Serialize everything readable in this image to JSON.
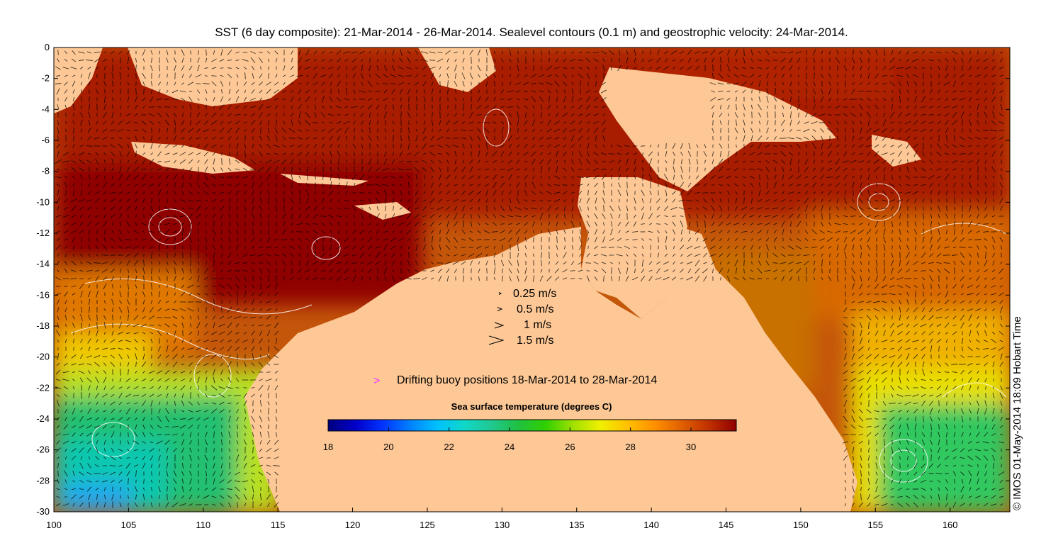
{
  "title": "SST (6 day composite): 21-Mar-2014 - 26-Mar-2014. Sealevel contours (0.1 m) and geostrophic velocity: 24-Mar-2014.",
  "credit": "© IMOS 01-May-2014 18:09 Hobart Time",
  "axes": {
    "x_ticks": [
      "100",
      "105",
      "110",
      "115",
      "120",
      "125",
      "130",
      "135",
      "140",
      "145",
      "150",
      "155",
      "160"
    ],
    "y_ticks": [
      "0",
      "-2",
      "-4",
      "-6",
      "-8",
      "-10",
      "-12",
      "-14",
      "-16",
      "-18",
      "-20",
      "-22",
      "-24",
      "-26",
      "-28",
      "-30"
    ],
    "lon_range": [
      100,
      164
    ],
    "lat_range": [
      -30,
      0
    ]
  },
  "velocity_legend": [
    {
      "label": "0.25 m/s",
      "speed": 0.25
    },
    {
      "label": "0.5 m/s",
      "speed": 0.5
    },
    {
      "label": "1 m/s",
      "speed": 1
    },
    {
      "label": "1.5 m/s",
      "speed": 1.5
    }
  ],
  "buoy_legend": {
    "label": "Drifting buoy positions 18-Mar-2014 to 28-Mar-2014",
    "marker": ">",
    "color": "#ff33ff"
  },
  "colorbar": {
    "title": "Sea surface temperature (degrees C)",
    "ticks": [
      "18",
      "20",
      "22",
      "24",
      "26",
      "28",
      "30"
    ],
    "range": [
      18,
      31.5
    ],
    "colors": [
      "#00007f",
      "#0000c8",
      "#0033ff",
      "#0080ff",
      "#00c0ff",
      "#10d8c8",
      "#20c890",
      "#20c040",
      "#30d000",
      "#a0e000",
      "#f0f000",
      "#ffc000",
      "#ff9000",
      "#e06000",
      "#c03000",
      "#900000"
    ]
  },
  "colors": {
    "land": "#fdc896",
    "sst_warm": "#a01000",
    "contour": "#ffffff",
    "vector": "#000000"
  }
}
